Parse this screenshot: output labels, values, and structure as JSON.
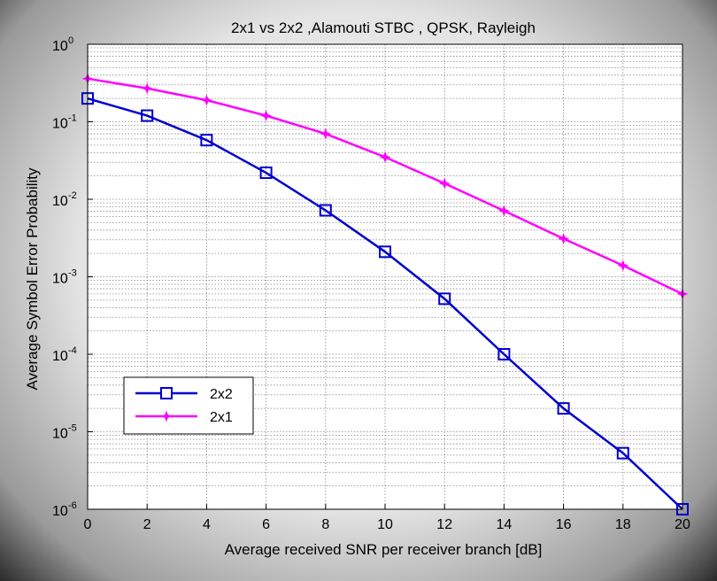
{
  "chart_data": {
    "type": "line",
    "title": "2x1 vs 2x2 ,Alamouti STBC , QPSK, Rayleigh",
    "xlabel": "Average received SNR per receiver branch [dB]",
    "ylabel": "Average Symbol Error Probability",
    "x": [
      0,
      2,
      4,
      6,
      8,
      10,
      12,
      14,
      16,
      18,
      20
    ],
    "xlim": [
      0,
      20
    ],
    "ylim": [
      1e-06,
      1
    ],
    "yscale": "log",
    "grid": true,
    "legend_position": "lower-left",
    "x_tick_labels": [
      "0",
      "2",
      "4",
      "6",
      "8",
      "10",
      "12",
      "14",
      "16",
      "18",
      "20"
    ],
    "y_tick_labels": [
      {
        "base": "10",
        "exp": "0",
        "value": 1
      },
      {
        "base": "10",
        "exp": "-1",
        "value": 0.1
      },
      {
        "base": "10",
        "exp": "-2",
        "value": 0.01
      },
      {
        "base": "10",
        "exp": "-3",
        "value": 0.001
      },
      {
        "base": "10",
        "exp": "-4",
        "value": 0.0001
      },
      {
        "base": "10",
        "exp": "-5",
        "value": 1e-05
      },
      {
        "base": "10",
        "exp": "-6",
        "value": 1e-06
      }
    ],
    "series": [
      {
        "name": "2x2",
        "color": "#0000cc",
        "marker": "square",
        "values": [
          0.2,
          0.12,
          0.058,
          0.022,
          0.0072,
          0.0021,
          0.00052,
          0.0001,
          2e-05,
          5.3e-06,
          1e-06
        ]
      },
      {
        "name": "2x1",
        "color": "#ff00ff",
        "marker": "star",
        "values": [
          0.36,
          0.27,
          0.19,
          0.12,
          0.07,
          0.035,
          0.016,
          0.0071,
          0.0031,
          0.0014,
          0.0006
        ]
      }
    ]
  }
}
